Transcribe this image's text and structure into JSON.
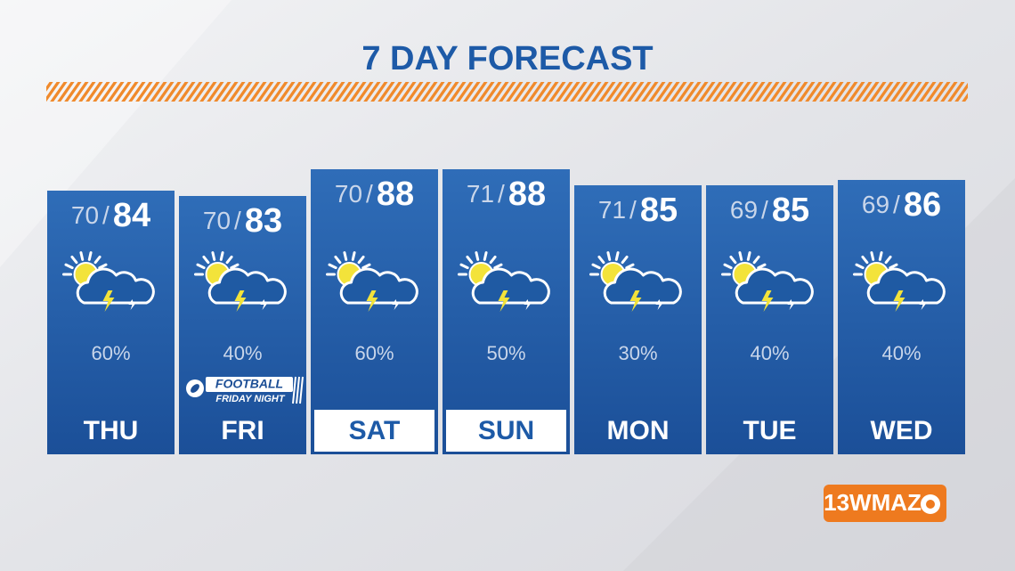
{
  "title": "7 DAY FORECAST",
  "days": [
    {
      "day": "THU",
      "low": 70,
      "high": 84,
      "precip": "60%"
    },
    {
      "day": "FRI",
      "low": 70,
      "high": 83,
      "precip": "40%"
    },
    {
      "day": "SAT",
      "low": 70,
      "high": 88,
      "precip": "60%"
    },
    {
      "day": "SUN",
      "low": 71,
      "high": 88,
      "precip": "50%"
    },
    {
      "day": "MON",
      "low": 71,
      "high": 85,
      "precip": "30%"
    },
    {
      "day": "TUE",
      "low": 69,
      "high": 85,
      "precip": "40%"
    },
    {
      "day": "WED",
      "low": 69,
      "high": 86,
      "precip": "40%"
    }
  ],
  "badge": {
    "line1": "FOOTBALL",
    "line2": "FRIDAY NIGHT"
  },
  "logo": "13WMAZ"
}
